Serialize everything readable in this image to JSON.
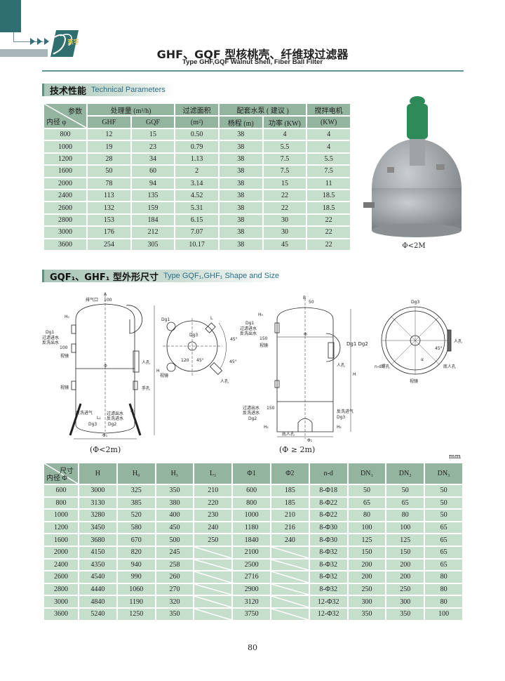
{
  "header": {
    "logo_text": "东宇",
    "title": "GHF、GQF 型核桃壳、纤维球过滤器",
    "subtitle": "Type GHF,GQF Walnut Shell, Fiber Ball Filter"
  },
  "section1": {
    "title_cn": "技术性能",
    "title_en": "Technical Parameters"
  },
  "table1": {
    "corner_top": "参数",
    "corner_bottom": "内径 φ",
    "group_headers": [
      "处理量 (m³/h)",
      "过滤面积",
      "配套水泵 ( 建议 )",
      "搅拌电机"
    ],
    "sub_headers": [
      "GHF",
      "GQF",
      "(m²)",
      "杨程 (m)",
      "功率 (KW)",
      "(KW)"
    ],
    "rows": [
      [
        "800",
        "12",
        "15",
        "0.50",
        "38",
        "4",
        "4"
      ],
      [
        "1000",
        "19",
        "23",
        "0.79",
        "38",
        "5.5",
        "4"
      ],
      [
        "1200",
        "28",
        "34",
        "1.13",
        "38",
        "7.5",
        "5.5"
      ],
      [
        "1600",
        "50",
        "60",
        "2",
        "38",
        "7.5",
        "7.5"
      ],
      [
        "2000",
        "78",
        "94",
        "3.14",
        "38",
        "15",
        "11"
      ],
      [
        "2400",
        "113",
        "135",
        "4.52",
        "38",
        "22",
        "18.5"
      ],
      [
        "2600",
        "132",
        "159",
        "5.31",
        "38",
        "22",
        "18.5"
      ],
      [
        "2800",
        "153",
        "184",
        "6.15",
        "38",
        "30",
        "22"
      ],
      [
        "3000",
        "176",
        "212",
        "7.07",
        "38",
        "30",
        "22"
      ],
      [
        "3600",
        "254",
        "305",
        "10.17",
        "38",
        "45",
        "22"
      ]
    ]
  },
  "photo": {
    "caption": "Φ<2M"
  },
  "section2": {
    "title_cn": "GQF₁、GHF₁ 型外形尺寸",
    "title_en": "Type GQF₁,GHF₁ Shape and Size"
  },
  "drawing_small": {
    "caption": "(Φ<2m)",
    "labels": {
      "a": "A",
      "vent": "排气口",
      "d100": "100",
      "h0": "H₀",
      "dg1": "Dg1",
      "filter_in": "过滤进水",
      "back_out": "反洗出水",
      "sight1": "视镜",
      "sight2": "视镜",
      "manhole": "人孔",
      "handhole": "手孔",
      "phi": "Φ",
      "h": "H",
      "d100b": "100",
      "h1": "H₁",
      "back_air": "反洗进气",
      "l1": "L₁",
      "filter_out": "过滤出水",
      "back_in": "反洗进水",
      "dg3": "Dg3",
      "dg2": "Dg2",
      "phi1": "Φ₁"
    }
  },
  "plan_small": {
    "labels": {
      "dg1": "Dg1",
      "l": "L",
      "dg3": "Dg3",
      "a45a": "45°",
      "a45b": "45°",
      "a45c": "45°",
      "d120": "120",
      "sight": "视镜",
      "manhole": "人孔"
    }
  },
  "drawing_large": {
    "caption": "(Φ ≥ 2m)",
    "labels": {
      "b": "B",
      "d50": "50",
      "h0": "H₀",
      "dg1": "Dg1",
      "filter_in": "过滤进水",
      "back_out": "反洗出水",
      "d150": "150",
      "sight": "视镜",
      "phi": "Φ",
      "manhole": "人孔",
      "h": "H",
      "filter_out": "过滤出水",
      "back_in": "反洗进水",
      "d150b": "150",
      "dg2": "Dg2",
      "back_air": "反洗进气",
      "dg3": "Dg3",
      "h1": "H₁",
      "h1b": "H₁",
      "bottom_manhole": "底人孔",
      "phi1": "Φ₁"
    }
  },
  "plan_large": {
    "labels": {
      "dg3": "Dg3",
      "dg1dg2": "Dg1 Dg2",
      "manhole": "人孔",
      "a45": "45°",
      "alpha": "α",
      "bottom_manhole": "底人孔",
      "nd": "n-d螺孔",
      "sight": "视镜"
    }
  },
  "units_note": "mm",
  "table2": {
    "corner_top": "尺寸",
    "corner_bottom": "内径 Φ",
    "headers": [
      "H",
      "H₀",
      "H₁",
      "L₁",
      "Φ1",
      "Φ2",
      "n-d",
      "DN₁",
      "DN₂",
      "DN₃"
    ],
    "rows": [
      [
        "600",
        "3000",
        "325",
        "350",
        "210",
        "600",
        "185",
        "8-Φ18",
        "50",
        "50",
        "50"
      ],
      [
        "800",
        "3130",
        "385",
        "380",
        "220",
        "800",
        "185",
        "8-Φ22",
        "65",
        "65",
        "50"
      ],
      [
        "1000",
        "3280",
        "520",
        "400",
        "230",
        "1000",
        "210",
        "8-Φ22",
        "80",
        "80",
        "50"
      ],
      [
        "1200",
        "3450",
        "580",
        "450",
        "240",
        "1180",
        "216",
        "8-Φ30",
        "100",
        "100",
        "65"
      ],
      [
        "1600",
        "3680",
        "670",
        "500",
        "250",
        "1840",
        "240",
        "8-Φ30",
        "125",
        "125",
        "65"
      ],
      [
        "2000",
        "4150",
        "820",
        "245",
        null,
        "2100",
        null,
        "8-Φ32",
        "150",
        "150",
        "65"
      ],
      [
        "2400",
        "4350",
        "940",
        "258",
        null,
        "2500",
        null,
        "8-Φ32",
        "200",
        "200",
        "65"
      ],
      [
        "2600",
        "4540",
        "990",
        "260",
        null,
        "2716",
        null,
        "8-Φ32",
        "200",
        "200",
        "80"
      ],
      [
        "2800",
        "4440",
        "1060",
        "270",
        null,
        "2900",
        null,
        "8-Φ32",
        "250",
        "250",
        "80"
      ],
      [
        "3000",
        "4840",
        "1190",
        "320",
        null,
        "3120",
        null,
        "12-Φ32",
        "300",
        "300",
        "80"
      ],
      [
        "3600",
        "5240",
        "1250",
        "350",
        null,
        "3750",
        null,
        "12-Φ32",
        "350",
        "350",
        "100"
      ]
    ]
  },
  "page_number": "80",
  "colors": {
    "brand_teal": "#2f6f6f",
    "table_header": "#93b49f",
    "table_cell": "#c6dfcc",
    "section_text": "#2c6e8a",
    "tank_gray": "#8f9396",
    "motor_green": "#2f8a5a"
  }
}
